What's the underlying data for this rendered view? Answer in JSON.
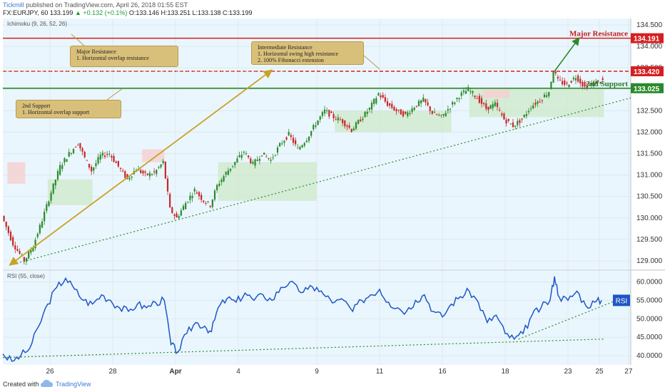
{
  "header": {
    "brand": "Tickmill",
    "published": "published on TradingView.com, April 26, 2018 01:55 EST",
    "symbol": "FX:EURJPY, 60",
    "last": "133.199",
    "change": "▲ +0.132 (+0.1%)",
    "ohlc": "O:133.146  H:133.251  L:133.138  C:133.199"
  },
  "footer": {
    "created_with": "Created with",
    "brand": "TradingView"
  },
  "callouts": {
    "major_resistance": [
      "Major Resistance",
      "1. Horizontal overlap resistance"
    ],
    "intermediate_resistance": [
      "Intermediate Resistance",
      "1. Horizontal swing high resistance",
      "2. 100% Fibonacci extension"
    ],
    "second_support": [
      "2nd Support",
      "1. Horizontal overlap support"
    ]
  },
  "chart_data": [
    {
      "type": "candlestick",
      "indicator_label": "Ichimoku (9, 26, 52, 26)",
      "ylim": [
        128.8,
        134.65
      ],
      "yticks": [
        "134.500",
        "134.000",
        "133.500",
        "133.000",
        "132.500",
        "132.000",
        "131.500",
        "131.000",
        "130.500",
        "130.000",
        "129.500",
        "129.000"
      ],
      "ytick_values": [
        134.5,
        134.0,
        133.5,
        133.0,
        132.5,
        132.0,
        131.5,
        131.0,
        130.5,
        130.0,
        129.5,
        129.0
      ],
      "x_dates": [
        "26",
        "28",
        "Apr",
        "4",
        "9",
        "11",
        "16",
        "18",
        "23",
        "25",
        "27"
      ],
      "price_path": [
        [
          0,
          130.05
        ],
        [
          5,
          129.4
        ],
        [
          10,
          129.0
        ],
        [
          14,
          129.35
        ],
        [
          18,
          129.95
        ],
        [
          22,
          130.6
        ],
        [
          26,
          131.2
        ],
        [
          30,
          131.5
        ],
        [
          34,
          131.75
        ],
        [
          37,
          131.4
        ],
        [
          40,
          131.1
        ],
        [
          44,
          131.45
        ],
        [
          48,
          131.5
        ],
        [
          52,
          131.2
        ],
        [
          56,
          130.9
        ],
        [
          60,
          131.15
        ],
        [
          64,
          131.0
        ],
        [
          68,
          131.05
        ],
        [
          72,
          131.3
        ],
        [
          75,
          130.2
        ],
        [
          78,
          130.0
        ],
        [
          82,
          130.35
        ],
        [
          86,
          130.65
        ],
        [
          90,
          130.4
        ],
        [
          93,
          130.3
        ],
        [
          96,
          130.75
        ],
        [
          100,
          131.05
        ],
        [
          104,
          131.3
        ],
        [
          108,
          131.55
        ],
        [
          112,
          131.25
        ],
        [
          116,
          131.5
        ],
        [
          120,
          131.35
        ],
        [
          124,
          131.7
        ],
        [
          128,
          131.95
        ],
        [
          132,
          131.6
        ],
        [
          136,
          131.85
        ],
        [
          140,
          132.2
        ],
        [
          144,
          132.5
        ],
        [
          148,
          132.35
        ],
        [
          152,
          132.25
        ],
        [
          156,
          132.05
        ],
        [
          160,
          132.3
        ],
        [
          164,
          132.55
        ],
        [
          168,
          132.9
        ],
        [
          172,
          132.65
        ],
        [
          176,
          132.5
        ],
        [
          180,
          132.4
        ],
        [
          184,
          132.6
        ],
        [
          188,
          132.75
        ],
        [
          192,
          132.45
        ],
        [
          196,
          132.35
        ],
        [
          200,
          132.6
        ],
        [
          204,
          132.85
        ],
        [
          208,
          133.0
        ],
        [
          212,
          132.8
        ],
        [
          216,
          132.55
        ],
        [
          220,
          132.65
        ],
        [
          224,
          132.3
        ],
        [
          228,
          132.15
        ],
        [
          232,
          132.3
        ],
        [
          236,
          132.6
        ],
        [
          240,
          132.75
        ],
        [
          244,
          132.95
        ],
        [
          246,
          133.45
        ],
        [
          248,
          133.2
        ],
        [
          252,
          133.1
        ],
        [
          256,
          133.3
        ],
        [
          260,
          133.05
        ],
        [
          264,
          133.15
        ],
        [
          267,
          133.2
        ]
      ],
      "cloud_segments": [
        [
          20,
          40,
          130.3,
          130.9
        ],
        [
          96,
          140,
          130.4,
          131.3
        ],
        [
          148,
          200,
          132.0,
          132.5
        ],
        [
          208,
          268,
          132.35,
          133.0
        ]
      ],
      "levels": [
        {
          "name": "Major Resistance",
          "value": 134.191,
          "label": "134.191",
          "color": "#d61f1f",
          "style": "solid"
        },
        {
          "name": "Intermediate Resistance",
          "value": 133.42,
          "label": "133.420",
          "color": "#d61f1f",
          "style": "dashed"
        },
        {
          "name": "2nd Support",
          "value": 133.025,
          "label": "133.025",
          "color": "#2a8a2a",
          "style": "solid"
        }
      ],
      "level_texts": {
        "major_resistance": "Major Resistance",
        "second_support": "2nd Support"
      },
      "trendline": {
        "from": [
          3,
          128.9
        ],
        "to": [
          280,
          132.8
        ]
      },
      "fib_arrow": {
        "from": [
          3,
          128.9
        ],
        "to": [
          120,
          133.45
        ]
      },
      "projection_arrow": {
        "from": [
          246,
          133.42
        ],
        "to": [
          257,
          134.2
        ]
      },
      "colors": {
        "up": "#2a8a2a",
        "down": "#c62828",
        "trend_green": "#2a8a2a",
        "fib_gold": "#c9a227",
        "cloud_green": "#cde8c9",
        "cloud_red": "#f6cfcf"
      }
    },
    {
      "type": "line",
      "indicator_label": "RSI (55, close)",
      "legend": "RSI",
      "ylim": [
        37.5,
        63.0
      ],
      "yticks": [
        "60.0000",
        "55.0000",
        "50.0000",
        "45.0000",
        "40.0000"
      ],
      "ytick_values": [
        60,
        55,
        50,
        45,
        40
      ],
      "rsi_path": [
        [
          0,
          40.5
        ],
        [
          4,
          38.5
        ],
        [
          8,
          40.0
        ],
        [
          12,
          42.0
        ],
        [
          16,
          48.0
        ],
        [
          20,
          54.0
        ],
        [
          24,
          58.5
        ],
        [
          28,
          61.0
        ],
        [
          32,
          58.0
        ],
        [
          36,
          55.0
        ],
        [
          40,
          54.0
        ],
        [
          44,
          56.5
        ],
        [
          48,
          55.0
        ],
        [
          52,
          53.0
        ],
        [
          56,
          52.0
        ],
        [
          60,
          54.0
        ],
        [
          64,
          53.0
        ],
        [
          68,
          54.5
        ],
        [
          72,
          55.0
        ],
        [
          75,
          43.0
        ],
        [
          78,
          41.0
        ],
        [
          82,
          46.0
        ],
        [
          86,
          49.0
        ],
        [
          90,
          48.0
        ],
        [
          93,
          46.5
        ],
        [
          96,
          53.0
        ],
        [
          100,
          55.5
        ],
        [
          104,
          54.5
        ],
        [
          108,
          57.0
        ],
        [
          112,
          55.0
        ],
        [
          116,
          56.5
        ],
        [
          120,
          55.0
        ],
        [
          124,
          58.5
        ],
        [
          128,
          60.0
        ],
        [
          132,
          57.5
        ],
        [
          136,
          58.0
        ],
        [
          140,
          58.5
        ],
        [
          144,
          56.0
        ],
        [
          148,
          54.5
        ],
        [
          152,
          55.0
        ],
        [
          156,
          52.0
        ],
        [
          160,
          55.0
        ],
        [
          164,
          56.5
        ],
        [
          168,
          58.0
        ],
        [
          172,
          54.5
        ],
        [
          176,
          53.0
        ],
        [
          180,
          52.0
        ],
        [
          184,
          55.0
        ],
        [
          188,
          56.5
        ],
        [
          192,
          52.0
        ],
        [
          196,
          50.5
        ],
        [
          200,
          54.0
        ],
        [
          204,
          56.0
        ],
        [
          208,
          57.5
        ],
        [
          212,
          54.5
        ],
        [
          216,
          49.0
        ],
        [
          220,
          51.0
        ],
        [
          224,
          46.0
        ],
        [
          228,
          44.5
        ],
        [
          232,
          46.0
        ],
        [
          236,
          51.0
        ],
        [
          240,
          53.0
        ],
        [
          244,
          55.0
        ],
        [
          246,
          61.5
        ],
        [
          248,
          56.0
        ],
        [
          252,
          55.0
        ],
        [
          256,
          57.5
        ],
        [
          260,
          53.5
        ],
        [
          264,
          54.5
        ],
        [
          267,
          55.0
        ]
      ],
      "trendlines": [
        {
          "from": [
            0,
            39.5
          ],
          "to": [
            268,
            44.5
          ]
        },
        {
          "from": [
            230,
            44.5
          ],
          "to": [
            280,
            56.5
          ]
        }
      ]
    }
  ]
}
